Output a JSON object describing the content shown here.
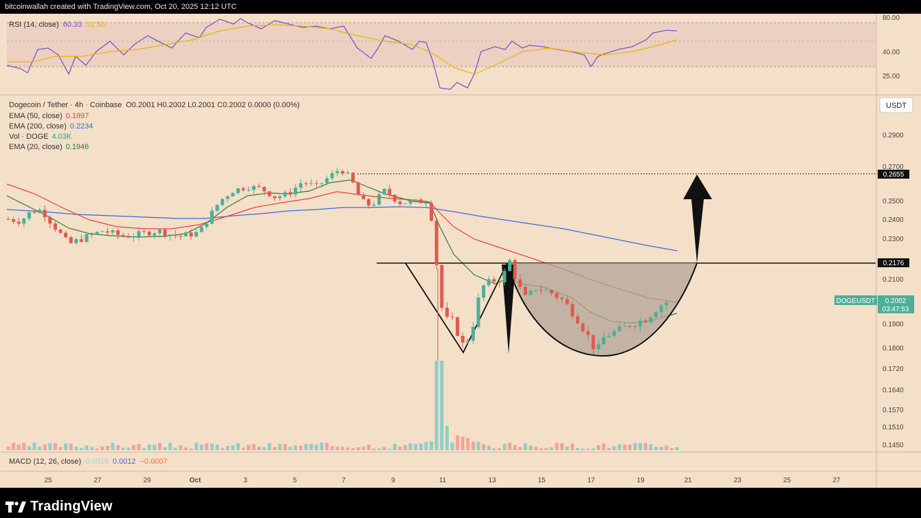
{
  "header": {
    "attribution": "bitcoinwallah created with TradingView.com, Oct 20, 2025 12:12 UTC"
  },
  "footer": {
    "brand": "TradingView",
    "logo_icon": "tradingview-logo-icon"
  },
  "colors": {
    "background": "#f4dfc8",
    "up": "#4caf98",
    "down": "#e05a4f",
    "ema50": "#e8413a",
    "ema200": "#3b6be0",
    "ema20": "#2e7d32",
    "rsi": "#7e57c2",
    "rsi_ma": "#e6b800",
    "pattern_fill": "#b3a498"
  },
  "rsi": {
    "label": "RSI (14, close)",
    "value": "60.33",
    "ma_value": "51.50",
    "levels": [
      "80.00",
      "40.00",
      "25.00"
    ]
  },
  "legend": {
    "title": "Dogecoin / Tether · 4h · Coinbase",
    "ohlc": "O0.2001  H0.2002  L0.2001  C0.2002  0.0000 (0.00%)",
    "ema50_label": "EMA (50, close)",
    "ema50_value": "0.1997",
    "ema200_label": "EMA (200, close)",
    "ema200_value": "0.2234",
    "vol_label": "Vol · DOGE",
    "vol_value": "4.03K",
    "ema20_label": "EMA (20, close)",
    "ema20_value": "0.1946"
  },
  "macd": {
    "label": "MACD (12, 26, close)",
    "v1": "0.0019",
    "v2": "0.0012",
    "v3": "−0.0007"
  },
  "price_scale": {
    "unit": "USDT",
    "ticks": [
      "0.2900",
      "0.2700",
      "0.2500",
      "0.2400",
      "0.2300",
      "0.2100",
      "0.1900",
      "0.1800",
      "0.1720",
      "0.1640",
      "0.1570",
      "0.1510",
      "0.1450"
    ],
    "markers": {
      "target": "0.2655",
      "neckline": "0.2176",
      "symbol": "DOGEUSDT",
      "price": "0.2002",
      "countdown": "03:47:53"
    }
  },
  "time_axis": [
    "25",
    "27",
    "29",
    "Oct",
    "3",
    "5",
    "7",
    "9",
    "11",
    "13",
    "15",
    "17",
    "19",
    "21",
    "23",
    "25",
    "27"
  ],
  "chart_data": {
    "type": "candlestick",
    "symbol": "Dogecoin / Tether",
    "interval": "4h",
    "exchange": "Coinbase",
    "y_unit": "USDT",
    "x": [
      "Sep 25",
      "Sep 27",
      "Sep 29",
      "Oct 1",
      "Oct 3",
      "Oct 5",
      "Oct 7",
      "Oct 9",
      "Oct 11",
      "Oct 13",
      "Oct 15",
      "Oct 17",
      "Oct 19",
      "Oct 20"
    ],
    "close": [
      0.24,
      0.227,
      0.23,
      0.235,
      0.258,
      0.253,
      0.268,
      0.25,
      0.192,
      0.214,
      0.205,
      0.18,
      0.192,
      0.2002
    ],
    "series": [
      {
        "name": "EMA (50, close)",
        "last": 0.1997
      },
      {
        "name": "EMA (200, close)",
        "last": 0.2234
      },
      {
        "name": "EMA (20, close)",
        "last": 0.1946
      }
    ],
    "annotations": {
      "neckline": 0.2176,
      "target": 0.2655,
      "current": 0.2002
    },
    "ylim": [
      0.145,
      0.29
    ],
    "log_scale": true,
    "grid": false
  }
}
